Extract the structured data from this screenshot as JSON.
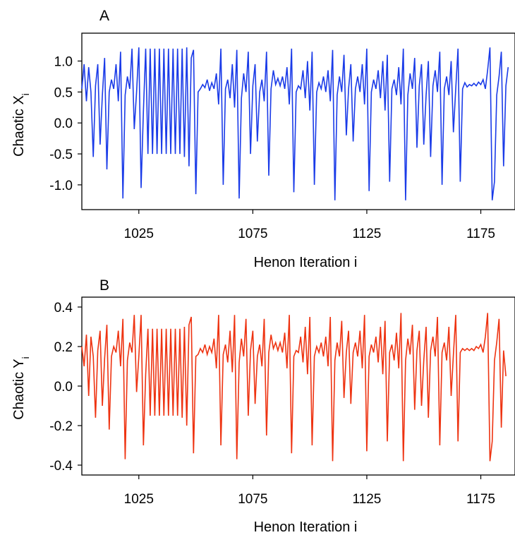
{
  "chart_data": [
    {
      "type": "line",
      "panel_label": "A",
      "xlabel": "Henon Iteration i",
      "ylabel": "Chaotic X",
      "ylabel_subscript": "i",
      "xlim": [
        1000,
        1190
      ],
      "ylim": [
        -1.4,
        1.45
      ],
      "xticks": [
        1025,
        1075,
        1125,
        1175
      ],
      "yticks": [
        1.0,
        0.5,
        0.0,
        -0.5,
        -1.0
      ],
      "ytick_labels": [
        "1.0",
        "0.5",
        "0.0",
        "-0.5",
        "-1.0"
      ],
      "grid": false,
      "color": "#1a3be8",
      "series": [
        {
          "x0": 1000,
          "values": [
            0.55,
            0.95,
            0.35,
            0.9,
            0.5,
            -0.55,
            0.6,
            0.95,
            -0.35,
            0.45,
            1.05,
            -0.75,
            0.5,
            0.7,
            0.55,
            0.95,
            0.35,
            1.15,
            -1.22,
            0.45,
            0.75,
            0.55,
            1.2,
            -0.1,
            0.5,
            1.22,
            -1.05,
            0.2,
            1.2,
            -0.5,
            1.2,
            -0.5,
            1.2,
            -0.5,
            1.2,
            -0.5,
            1.2,
            -0.5,
            1.2,
            -0.5,
            1.2,
            -0.5,
            1.2,
            -0.5,
            1.2,
            -0.55,
            1.22,
            -0.7,
            1.05,
            1.18,
            -1.15,
            0.5,
            0.55,
            0.62,
            0.57,
            0.7,
            0.52,
            0.65,
            0.55,
            0.8,
            0.3,
            1.2,
            -1.0,
            0.55,
            0.7,
            0.4,
            0.95,
            0.25,
            1.18,
            -1.22,
            0.4,
            0.8,
            0.5,
            1.15,
            -0.5,
            0.6,
            0.95,
            -0.3,
            0.5,
            0.7,
            0.35,
            1.15,
            -0.85,
            0.55,
            0.85,
            0.62,
            0.72,
            0.6,
            0.75,
            0.55,
            0.9,
            0.3,
            1.2,
            -1.12,
            0.5,
            0.6,
            0.55,
            0.85,
            0.4,
            1.0,
            0.2,
            1.15,
            -1.0,
            0.5,
            0.65,
            0.55,
            0.75,
            0.5,
            0.85,
            0.35,
            1.18,
            -1.25,
            0.45,
            0.75,
            0.5,
            1.1,
            -0.2,
            0.55,
            0.95,
            -0.3,
            0.55,
            0.75,
            0.5,
            0.95,
            0.3,
            1.2,
            -1.1,
            0.5,
            0.7,
            0.55,
            0.85,
            0.4,
            1.0,
            0.2,
            1.1,
            -0.95,
            0.55,
            0.7,
            0.45,
            0.9,
            0.3,
            1.2,
            -1.25,
            0.45,
            0.8,
            0.55,
            1.05,
            -0.4,
            0.6,
            0.95,
            -0.35,
            0.45,
            1.0,
            -0.55,
            0.6,
            0.85,
            0.5,
            1.15,
            -1.0,
            0.55,
            0.75,
            0.45,
            1.0,
            -0.15,
            0.55,
            1.2,
            -0.95,
            0.55,
            0.65,
            0.58,
            0.62,
            0.6,
            0.64,
            0.6,
            0.66,
            0.62,
            0.7,
            0.55,
            0.85,
            1.22,
            -1.25,
            -0.95,
            0.45,
            0.75,
            1.15,
            -0.7,
            0.6,
            0.9
          ]
        }
      ]
    },
    {
      "type": "line",
      "panel_label": "B",
      "xlabel": "Henon Iteration i",
      "ylabel": "Chaotic Y",
      "ylabel_subscript": "i",
      "xlim": [
        1000,
        1190
      ],
      "ylim": [
        -0.45,
        0.45
      ],
      "xticks": [
        1025,
        1075,
        1125,
        1175
      ],
      "yticks": [
        0.4,
        0.2,
        0.0,
        -0.2,
        -0.4
      ],
      "ytick_labels": [
        "0.4",
        "0.2",
        "0.0",
        "-0.2",
        "-0.4"
      ],
      "grid": false,
      "color": "#ee3311",
      "series": [
        {
          "x0": 1000,
          "values": [
            0.2,
            0.1,
            0.26,
            -0.05,
            0.25,
            0.15,
            -0.16,
            0.18,
            0.28,
            -0.1,
            0.14,
            0.31,
            -0.22,
            0.15,
            0.2,
            0.17,
            0.28,
            0.1,
            0.34,
            -0.37,
            0.13,
            0.22,
            0.17,
            0.36,
            -0.03,
            0.15,
            0.36,
            -0.3,
            0.06,
            0.29,
            -0.15,
            0.29,
            -0.15,
            0.29,
            -0.15,
            0.29,
            -0.15,
            0.29,
            -0.15,
            0.29,
            -0.15,
            0.29,
            -0.15,
            0.29,
            -0.16,
            0.3,
            -0.2,
            0.31,
            0.35,
            -0.34,
            0.15,
            0.16,
            0.19,
            0.17,
            0.21,
            0.16,
            0.2,
            0.17,
            0.24,
            0.09,
            0.36,
            -0.3,
            0.16,
            0.21,
            0.12,
            0.28,
            0.07,
            0.36,
            -0.37,
            0.12,
            0.24,
            0.15,
            0.34,
            -0.15,
            0.18,
            0.28,
            -0.09,
            0.15,
            0.21,
            0.1,
            0.34,
            -0.25,
            0.17,
            0.26,
            0.19,
            0.22,
            0.18,
            0.22,
            0.17,
            0.27,
            0.09,
            0.36,
            -0.34,
            0.15,
            0.18,
            0.17,
            0.25,
            0.12,
            0.3,
            0.06,
            0.35,
            -0.3,
            0.15,
            0.2,
            0.17,
            0.22,
            0.15,
            0.25,
            0.1,
            0.35,
            -0.38,
            0.13,
            0.22,
            0.15,
            0.33,
            -0.06,
            0.17,
            0.28,
            -0.09,
            0.17,
            0.22,
            0.15,
            0.28,
            0.09,
            0.36,
            -0.33,
            0.15,
            0.21,
            0.17,
            0.25,
            0.12,
            0.3,
            0.06,
            0.33,
            -0.28,
            0.17,
            0.21,
            0.13,
            0.27,
            0.09,
            0.37,
            -0.38,
            0.13,
            0.24,
            0.16,
            0.31,
            -0.12,
            0.18,
            0.28,
            -0.1,
            0.13,
            0.3,
            -0.16,
            0.18,
            0.25,
            0.15,
            0.35,
            -0.3,
            0.17,
            0.22,
            0.13,
            0.3,
            -0.05,
            0.16,
            0.36,
            -0.28,
            0.17,
            0.19,
            0.18,
            0.19,
            0.18,
            0.19,
            0.18,
            0.2,
            0.19,
            0.21,
            0.17,
            0.25,
            0.37,
            -0.38,
            -0.28,
            0.13,
            0.22,
            0.34,
            -0.21,
            0.18,
            0.05
          ]
        }
      ]
    }
  ]
}
